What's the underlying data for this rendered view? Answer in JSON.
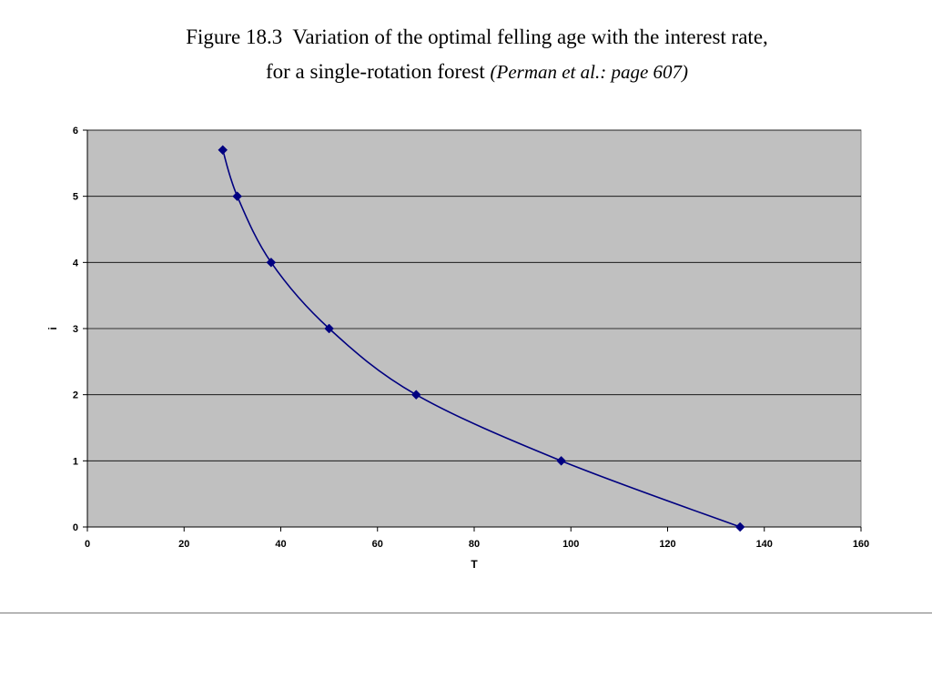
{
  "caption": {
    "line1": "Figure 18.3  Variation of the optimal felling age with the interest rate,",
    "line2_main": "for a single-rotation forest ",
    "line2_source": "(Perman et al.: page 607)"
  },
  "chart_data": {
    "type": "line",
    "title": "",
    "xlabel": "T",
    "ylabel": "i",
    "xlim": [
      0,
      160
    ],
    "ylim": [
      0,
      6
    ],
    "x_ticks": [
      0,
      20,
      40,
      60,
      80,
      100,
      120,
      140,
      160
    ],
    "y_ticks": [
      0,
      1,
      2,
      3,
      4,
      5,
      6
    ],
    "grid": "horizontal",
    "legend": "none",
    "plot_background": "#c0c0c0",
    "series": [
      {
        "color": "#000080",
        "marker": "diamond",
        "x": [
          28,
          31,
          38,
          50,
          68,
          98,
          135
        ],
        "y": [
          5.7,
          5,
          4,
          3,
          2,
          1,
          0
        ]
      }
    ]
  }
}
